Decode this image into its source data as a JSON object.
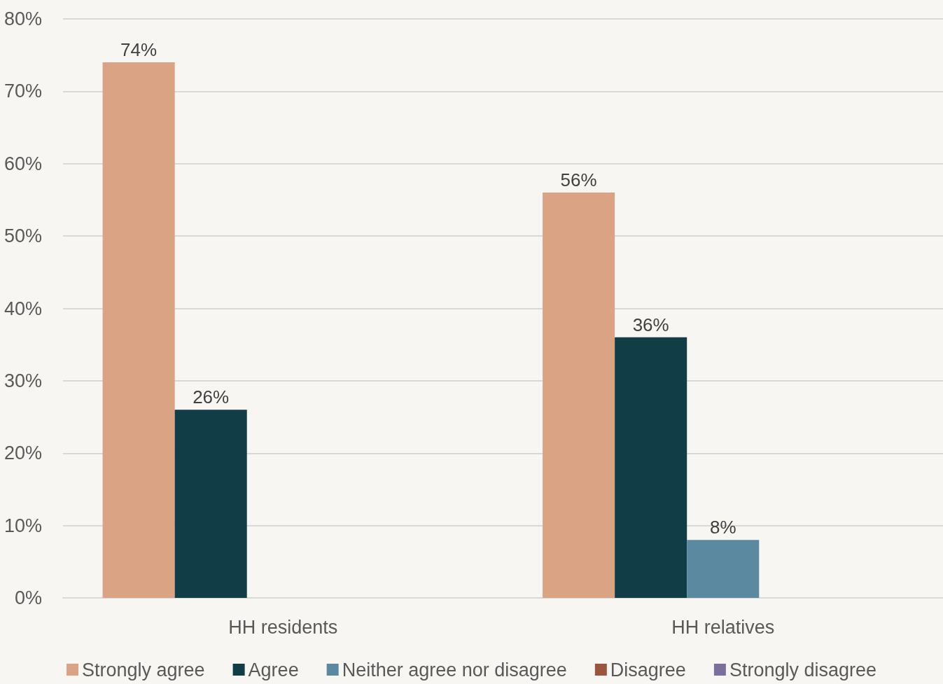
{
  "chart_data": {
    "type": "bar",
    "categories": [
      "HH residents",
      "HH relatives"
    ],
    "series": [
      {
        "name": "Strongly agree",
        "color": "#d9a384",
        "values": [
          74,
          56
        ],
        "value_labels": [
          "74%",
          "56%"
        ]
      },
      {
        "name": "Agree",
        "color": "#113d46",
        "values": [
          26,
          36
        ],
        "value_labels": [
          "26%",
          "36%"
        ]
      },
      {
        "name": "Neither agree nor disagree",
        "color": "#5a89a0",
        "values": [
          0,
          8
        ],
        "value_labels": [
          null,
          "8%"
        ]
      },
      {
        "name": "Disagree",
        "color": "#9b5440",
        "values": [
          0,
          0
        ],
        "value_labels": [
          null,
          null
        ]
      },
      {
        "name": "Strongly disagree",
        "color": "#7b6f9c",
        "values": [
          0,
          0
        ],
        "value_labels": [
          null,
          null
        ]
      }
    ],
    "ylim": [
      0,
      80
    ],
    "yticks": [
      {
        "value": 0,
        "label": "0%"
      },
      {
        "value": 10,
        "label": "10%"
      },
      {
        "value": 20,
        "label": "20%"
      },
      {
        "value": 30,
        "label": "30%"
      },
      {
        "value": 40,
        "label": "40%"
      },
      {
        "value": 50,
        "label": "50%"
      },
      {
        "value": 60,
        "label": "60%"
      },
      {
        "value": 70,
        "label": "70%"
      },
      {
        "value": 80,
        "label": "80%"
      }
    ],
    "grid": "y",
    "legend": "bottom"
  }
}
